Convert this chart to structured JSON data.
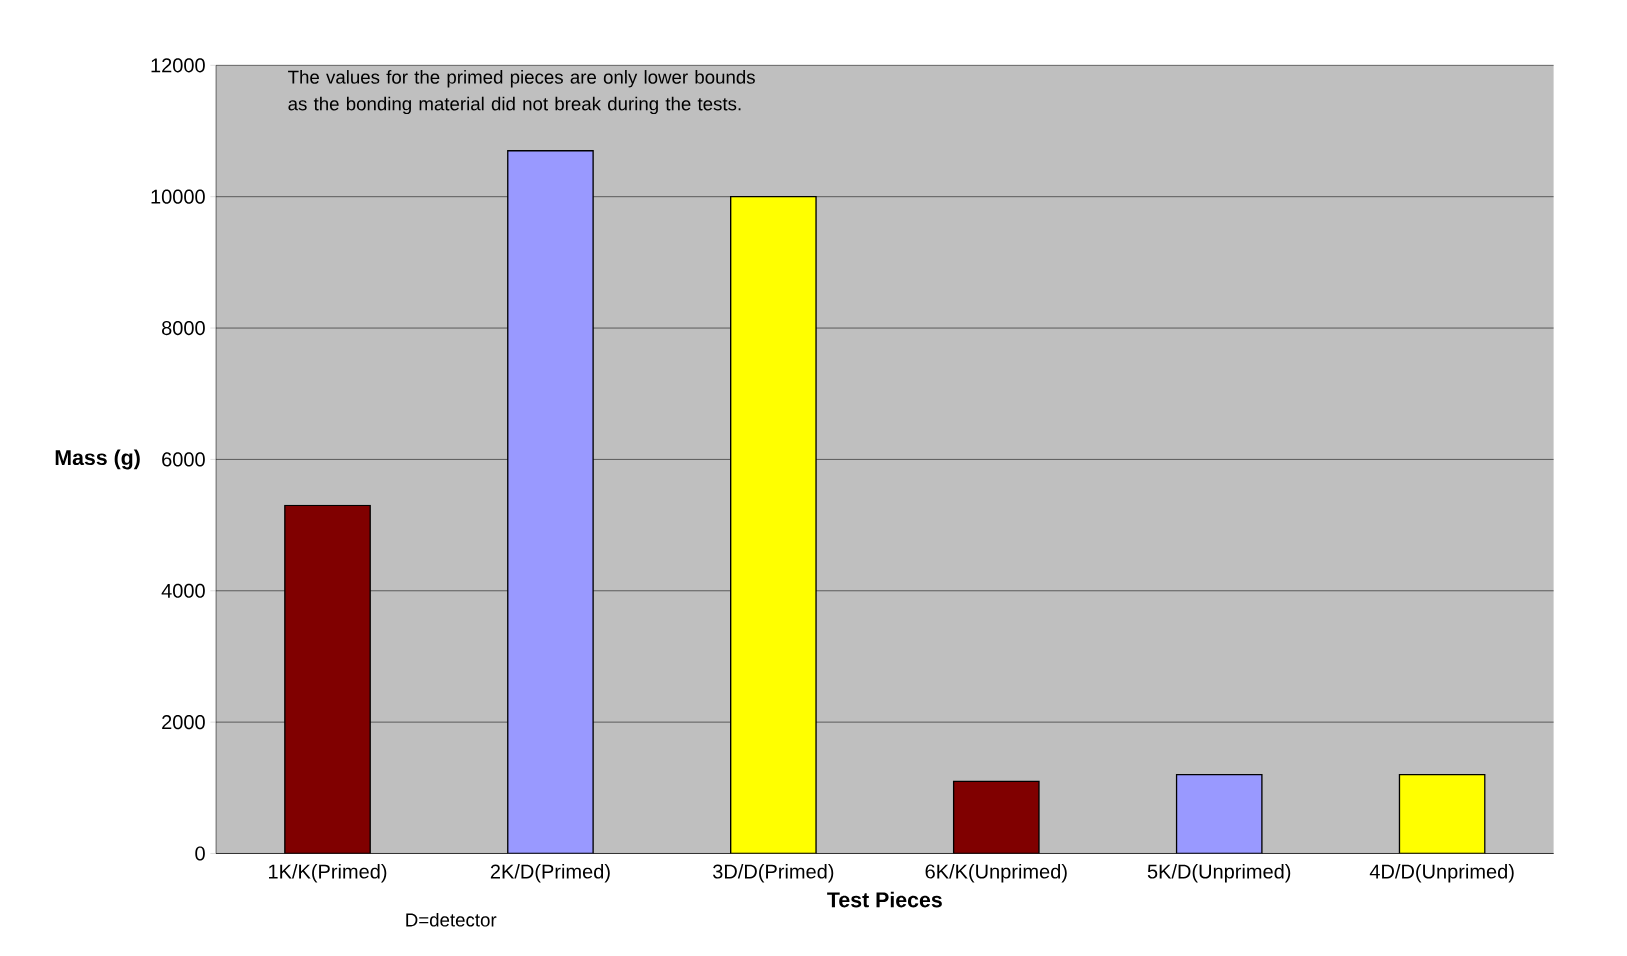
{
  "chart_data": {
    "type": "bar",
    "xlabel": "Test Pieces",
    "ylabel": "Mass (g)",
    "categories": [
      "1K/K(Primed)",
      "2K/D(Primed)",
      "3D/D(Primed)",
      "6K/K(Unprimed)",
      "5K/D(Unprimed)",
      "4D/D(Unprimed)"
    ],
    "values": [
      5300,
      10700,
      10000,
      1100,
      1200,
      1200
    ],
    "colors": [
      "#800000",
      "#9999ff",
      "#ffff00",
      "#800000",
      "#9999ff",
      "#ffff00"
    ],
    "ylim": [
      0,
      12000
    ],
    "yticks": [
      0,
      2000,
      4000,
      6000,
      8000,
      10000,
      12000
    ],
    "grid": "y",
    "annotations": [
      "The values for the primed pieces are only lower bounds as the bonding material did not break during the tests.",
      "D=detector"
    ]
  }
}
